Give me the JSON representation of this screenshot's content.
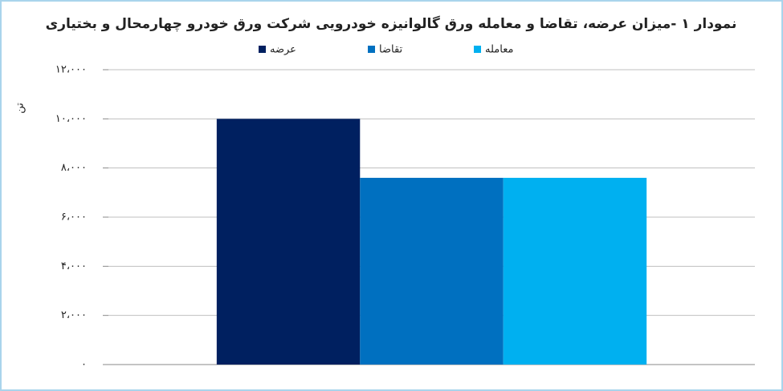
{
  "chart_data": {
    "type": "bar",
    "title": "نمودار ۱ -میزان عرضه، تقاضا و معامله ورق گالوانیزه خودرویی شرکت ورق خودرو چهارمحال و بختیاری",
    "y_label": "تن",
    "categories": [
      null
    ],
    "series": [
      {
        "name": "عرضه",
        "color": "#002060",
        "values": [
          10000
        ]
      },
      {
        "name": "تقاضا",
        "color": "#0070c0",
        "values": [
          7600
        ]
      },
      {
        "name": "معامله",
        "color": "#00b0f0",
        "values": [
          7600
        ]
      }
    ],
    "ylim": [
      0,
      12000
    ],
    "yticks": [
      {
        "value": 0,
        "label": "۰"
      },
      {
        "value": 2000,
        "label": "۲،۰۰۰"
      },
      {
        "value": 4000,
        "label": "۴،۰۰۰"
      },
      {
        "value": 6000,
        "label": "۶،۰۰۰"
      },
      {
        "value": 8000,
        "label": "۸،۰۰۰"
      },
      {
        "value": 10000,
        "label": "۱۰،۰۰۰"
      },
      {
        "value": 12000,
        "label": "۱۲،۰۰۰"
      }
    ],
    "grid": true
  }
}
